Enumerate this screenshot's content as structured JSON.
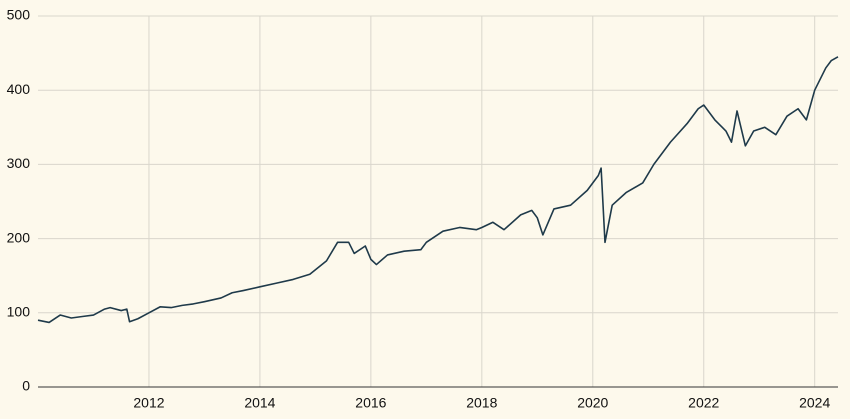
{
  "chart_data": {
    "type": "line",
    "color": "#1f3a4a",
    "grid": true,
    "x": [
      2010.0,
      2010.2,
      2010.4,
      2010.6,
      2010.8,
      2011.0,
      2011.2,
      2011.3,
      2011.5,
      2011.6,
      2011.65,
      2011.8,
      2012.0,
      2012.2,
      2012.4,
      2012.6,
      2012.8,
      2013.0,
      2013.3,
      2013.5,
      2013.7,
      2014.0,
      2014.3,
      2014.6,
      2014.9,
      2015.2,
      2015.4,
      2015.6,
      2015.7,
      2015.9,
      2016.0,
      2016.1,
      2016.3,
      2016.6,
      2016.9,
      2017.0,
      2017.3,
      2017.6,
      2017.9,
      2018.0,
      2018.2,
      2018.4,
      2018.7,
      2018.9,
      2019.0,
      2019.1,
      2019.3,
      2019.6,
      2019.9,
      2020.1,
      2020.15,
      2020.22,
      2020.35,
      2020.6,
      2020.9,
      2021.1,
      2021.4,
      2021.7,
      2021.9,
      2022.0,
      2022.2,
      2022.4,
      2022.5,
      2022.6,
      2022.75,
      2022.9,
      2023.1,
      2023.3,
      2023.5,
      2023.7,
      2023.85,
      2024.0,
      2024.2,
      2024.3,
      2024.42
    ],
    "values": [
      90,
      87,
      97,
      93,
      95,
      97,
      105,
      107,
      103,
      105,
      88,
      92,
      100,
      108,
      107,
      110,
      112,
      115,
      120,
      127,
      130,
      135,
      140,
      145,
      152,
      170,
      195,
      195,
      180,
      190,
      172,
      165,
      178,
      183,
      185,
      195,
      210,
      215,
      212,
      215,
      222,
      212,
      232,
      238,
      228,
      205,
      240,
      245,
      265,
      285,
      295,
      195,
      245,
      262,
      275,
      300,
      330,
      355,
      375,
      380,
      360,
      345,
      330,
      372,
      325,
      345,
      350,
      340,
      365,
      375,
      360,
      400,
      430,
      440,
      445
    ],
    "xlim": [
      2010,
      2024.42
    ],
    "xticks": [
      2012,
      2014,
      2016,
      2018,
      2020,
      2022,
      2024
    ],
    "ylim": [
      0,
      500
    ],
    "yticks": [
      0,
      100,
      200,
      300,
      400,
      500
    ]
  }
}
